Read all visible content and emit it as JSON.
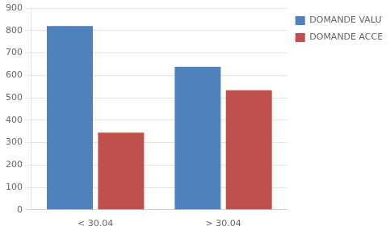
{
  "chart_data": {
    "type": "bar",
    "categories": [
      "< 30.04",
      "> 30.04"
    ],
    "series": [
      {
        "name": "DOMANDE VALUTATE",
        "color": "#4F81BD",
        "values": [
          820,
          638
        ]
      },
      {
        "name": "DOMANDE ACCETTATE",
        "color": "#C0504D",
        "values": [
          344,
          533
        ]
      }
    ],
    "ylim": [
      0,
      900
    ],
    "yticks": [
      0,
      100,
      200,
      300,
      400,
      500,
      600,
      700,
      800,
      900
    ],
    "grid": true,
    "legend": "right"
  }
}
